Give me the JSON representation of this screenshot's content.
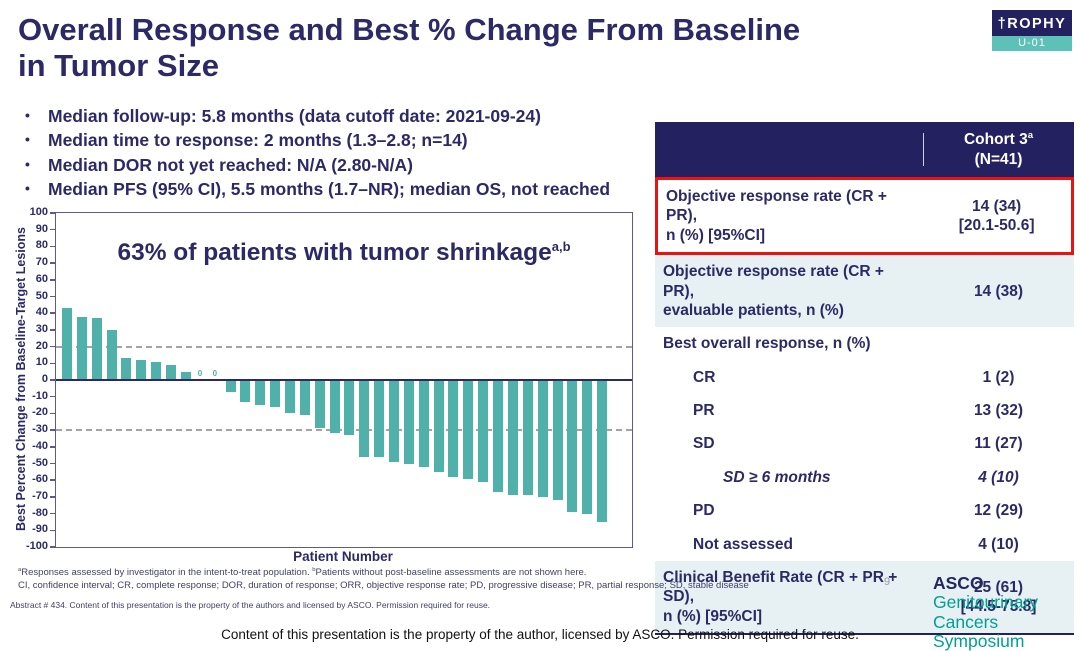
{
  "title": "Overall Response and Best % Change From Baseline\nin Tumor Size",
  "trophy_logo": {
    "name": "ROPHY",
    "icon": "†",
    "sub": "U-01"
  },
  "bullets": [
    "Median follow-up: 5.8 months (data cutoff date: 2021-09-24)",
    "Median time to response: 2 months (1.3–2.8; n=14)",
    "Median DOR not yet reached: N/A (2.80-N/A)",
    "Median PFS (95% CI), 5.5 months (1.7–NR); median OS, not reached"
  ],
  "chart_data": {
    "type": "bar",
    "title": "63% of patients with tumor shrinkage",
    "title_sup": "a,b",
    "xlabel": "Patient Number",
    "ylabel": "Best Percent Change from Baseline-Target Lesions",
    "ylim": [
      -100,
      100
    ],
    "yticks": [
      100,
      90,
      80,
      70,
      60,
      50,
      40,
      30,
      20,
      10,
      0,
      -10,
      -20,
      -30,
      -40,
      -50,
      -60,
      -70,
      -80,
      -90,
      -100
    ],
    "reference_lines": [
      20,
      -30
    ],
    "grid": false,
    "bar_color": "#4fb1a9",
    "values": [
      43,
      38,
      37,
      30,
      13,
      12,
      11,
      9,
      5,
      0,
      0,
      -7,
      -13,
      -15,
      -16,
      -20,
      -21,
      -29,
      -32,
      -33,
      -46,
      -46,
      -49,
      -50,
      -52,
      -55,
      -58,
      -59,
      -61,
      -67,
      -69,
      -69,
      -70,
      -72,
      -79,
      -80,
      -85
    ]
  },
  "table": {
    "header": {
      "cohort": "Cohort 3",
      "cohort_sup": "a",
      "cohort_n": "(N=41)"
    },
    "rows": [
      {
        "label": "Objective response rate (CR + PR),\nn (%) [95%CI]",
        "value": "14 (34)\n[20.1-50.6]",
        "red_box": true
      },
      {
        "label": "Objective response rate (CR + PR),\nevaluable patients, n (%)",
        "value": "14 (38)",
        "highlight": true
      },
      {
        "label": "Best overall response, n (%)",
        "value": ""
      },
      {
        "label": "CR",
        "value": "1 (2)",
        "indent": 1
      },
      {
        "label": "PR",
        "value": "13 (32)",
        "indent": 1
      },
      {
        "label": "SD",
        "value": "11 (27)",
        "indent": 1
      },
      {
        "label": "SD ≥ 6 months",
        "value": "4 (10)",
        "indent": 2,
        "italic": true
      },
      {
        "label": "PD",
        "value": "12 (29)",
        "indent": 1
      },
      {
        "label": "Not assessed",
        "value": "4 (10)",
        "indent": 1
      },
      {
        "label": "Clinical Benefit Rate (CR + PR + SD),\nn (%) [95%CI]",
        "value": "25 (61)\n[44.5-75.8]",
        "highlight": true
      }
    ]
  },
  "footnotes": {
    "sup_a": "a",
    "line1a": "Responses assessed by investigator in the intent-to-treat population. ",
    "sup_b": "b",
    "line1b": "Patients without post-baseline assessments are not shown here.",
    "line2": "CI, confidence interval; CR, complete response; DOR, duration of response; ORR, objective response rate; PD, progressive disease; PR, partial response; SD, stable disease",
    "abstract": "Abstract # 434. Content of this presentation is the property of the authors and licensed by ASCO. Permission required for reuse."
  },
  "page_number": "9",
  "asco_logo": {
    "bold": "ASCO",
    "line1": " Genitourinary",
    "line2": "Cancers Symposium"
  },
  "footer": "Content of this presentation is the property of the author, licensed by ASCO. Permission required for reuse.",
  "colors": {
    "navy": "#2b2966",
    "table_header_navy": "#242161",
    "bar_teal": "#4fb1a9",
    "row_highlight": "#e7f1f3",
    "highlight_red": "#ee1111",
    "asco_teal": "#00a093"
  }
}
